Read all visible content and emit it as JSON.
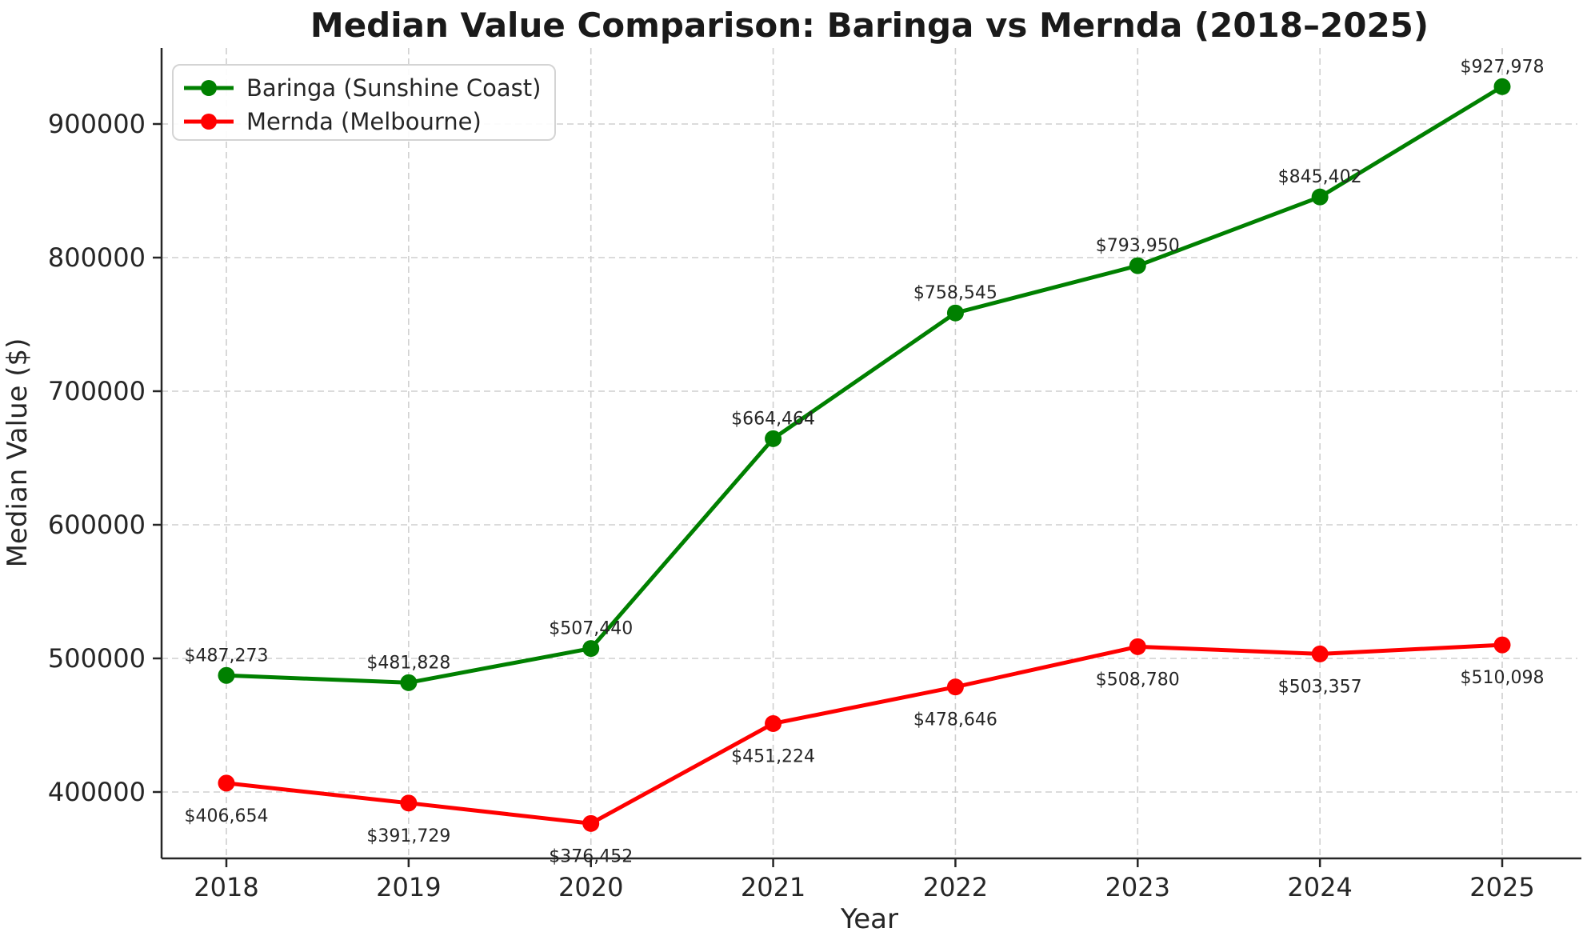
{
  "title": "Median Value Comparison: Baringa vs Mernda (2018–2025)",
  "chart_data": {
    "type": "line",
    "x": [
      2018,
      2019,
      2020,
      2021,
      2022,
      2023,
      2024,
      2025
    ],
    "series": [
      {
        "name": "Baringa (Sunshine Coast)",
        "color": "#008000",
        "values": [
          487273,
          481828,
          507440,
          664464,
          758545,
          793950,
          845402,
          927978
        ],
        "point_labels": [
          "$487,273",
          "$481,828",
          "$507,440",
          "$664,464",
          "$758,545",
          "$793,950",
          "$845,402",
          "$927,978"
        ],
        "label_position": "above"
      },
      {
        "name": "Mernda (Melbourne)",
        "color": "#ff0000",
        "values": [
          406654,
          391729,
          376452,
          451224,
          478646,
          508780,
          503357,
          510098
        ],
        "point_labels": [
          "$406,654",
          "$391,729",
          "$376,452",
          "$451,224",
          "$478,646",
          "$508,780",
          "$503,357",
          "$510,098"
        ],
        "label_position": "below"
      }
    ],
    "xlabel": "Year",
    "ylabel": "Median Value ($)",
    "yticks": [
      400000,
      500000,
      600000,
      700000,
      800000,
      900000
    ],
    "ylim": [
      348800,
      955600
    ],
    "xlim": [
      2017.65,
      2025.35
    ],
    "grid": true,
    "grid_style": "dashed",
    "legend_position": "upper left"
  },
  "colors": {
    "grid": "#cfcfcf",
    "spine": "#262626",
    "background": "#ffffff",
    "legend_border": "#d4d4d4"
  }
}
